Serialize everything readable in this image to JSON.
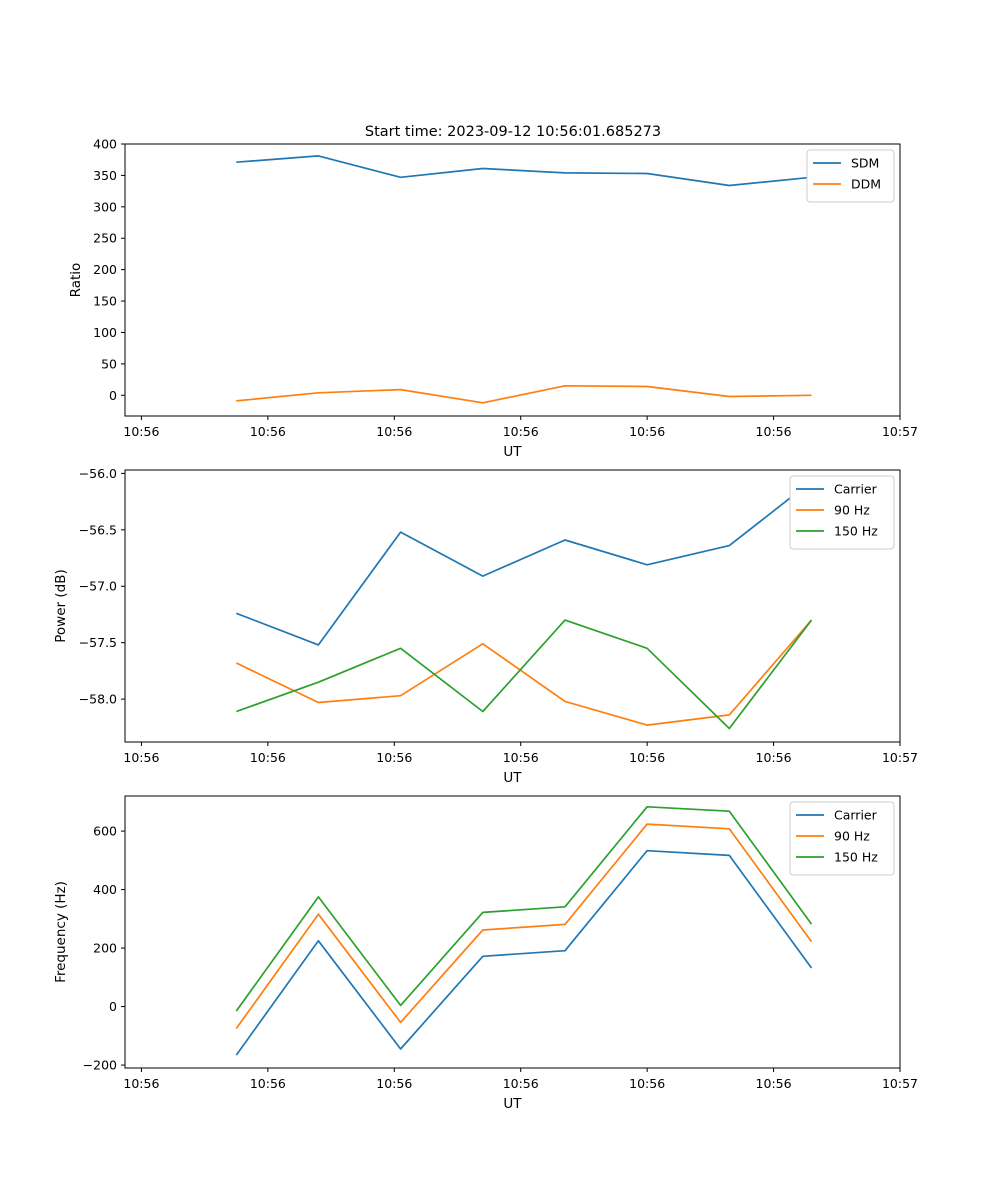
{
  "figure_title": "Start time: 2023-09-12 10:56:01.685273",
  "chart_data": [
    {
      "type": "line",
      "title": "Start time: 2023-09-12 10:56:01.685273",
      "xlabel": "UT",
      "ylabel": "Ratio",
      "x": [
        0.75,
        1.4,
        2.05,
        2.7,
        3.35,
        4.0,
        4.65,
        5.3
      ],
      "xlim": [
        -0.13,
        6.0
      ],
      "ylim": [
        -33,
        400
      ],
      "xticks": [
        0,
        1,
        2,
        3,
        4,
        5,
        6
      ],
      "xtick_labels": [
        "10:56",
        "10:56",
        "10:56",
        "10:56",
        "10:56",
        "10:56",
        "10:57"
      ],
      "yticks": [
        0,
        50,
        100,
        150,
        200,
        250,
        300,
        350,
        400
      ],
      "ytick_labels": [
        "0",
        "50",
        "100",
        "150",
        "200",
        "250",
        "300",
        "350",
        "400"
      ],
      "legend_position": "top-right",
      "series": [
        {
          "name": "SDM",
          "color": "#1f77b4",
          "values": [
            371,
            381,
            347,
            361,
            354,
            353,
            334,
            347
          ]
        },
        {
          "name": "DDM",
          "color": "#ff7f0e",
          "values": [
            -9,
            4,
            9,
            -12,
            15,
            14,
            -2,
            0
          ]
        }
      ]
    },
    {
      "type": "line",
      "title": "",
      "xlabel": "UT",
      "ylabel": "Power (dB)",
      "x": [
        0.75,
        1.4,
        2.05,
        2.7,
        3.35,
        4.0,
        4.65,
        5.3
      ],
      "xlim": [
        -0.13,
        6.0
      ],
      "ylim": [
        -58.38,
        -55.97
      ],
      "xticks": [
        0,
        1,
        2,
        3,
        4,
        5,
        6
      ],
      "xtick_labels": [
        "10:56",
        "10:56",
        "10:56",
        "10:56",
        "10:56",
        "10:56",
        "10:57"
      ],
      "yticks": [
        -58.0,
        -57.5,
        -57.0,
        -56.5,
        -56.0
      ],
      "ytick_labels": [
        "−58.0",
        "−57.5",
        "−57.0",
        "−56.5",
        "−56.0"
      ],
      "legend_position": "top-right",
      "series": [
        {
          "name": "Carrier",
          "color": "#1f77b4",
          "values": [
            -57.24,
            -57.52,
            -56.52,
            -56.91,
            -56.59,
            -56.81,
            -56.64,
            -56.07
          ]
        },
        {
          "name": "90 Hz",
          "color": "#ff7f0e",
          "values": [
            -57.68,
            -58.03,
            -57.97,
            -57.51,
            -58.02,
            -58.23,
            -58.14,
            -57.3
          ]
        },
        {
          "name": "150 Hz",
          "color": "#2ca02c",
          "values": [
            -58.11,
            -57.85,
            -57.55,
            -58.11,
            -57.3,
            -57.55,
            -58.26,
            -57.3
          ]
        }
      ]
    },
    {
      "type": "line",
      "title": "",
      "xlabel": "UT",
      "ylabel": "Frequency (Hz)",
      "x": [
        0.75,
        1.4,
        2.05,
        2.7,
        3.35,
        4.0,
        4.65,
        5.3
      ],
      "xlim": [
        -0.13,
        6.0
      ],
      "ylim": [
        -210,
        720
      ],
      "xticks": [
        0,
        1,
        2,
        3,
        4,
        5,
        6
      ],
      "xtick_labels": [
        "10:56",
        "10:56",
        "10:56",
        "10:56",
        "10:56",
        "10:56",
        "10:57"
      ],
      "yticks": [
        -200,
        0,
        200,
        400,
        600
      ],
      "ytick_labels": [
        "−200",
        "0",
        "200",
        "400",
        "600"
      ],
      "legend_position": "top-right",
      "series": [
        {
          "name": "Carrier",
          "color": "#1f77b4",
          "values": [
            -166,
            225,
            -145,
            172,
            191,
            533,
            517,
            132
          ]
        },
        {
          "name": "90 Hz",
          "color": "#ff7f0e",
          "values": [
            -75,
            316,
            -54,
            262,
            281,
            624,
            608,
            222
          ]
        },
        {
          "name": "150 Hz",
          "color": "#2ca02c",
          "values": [
            -15,
            375,
            4,
            322,
            341,
            683,
            668,
            282
          ]
        }
      ]
    }
  ]
}
